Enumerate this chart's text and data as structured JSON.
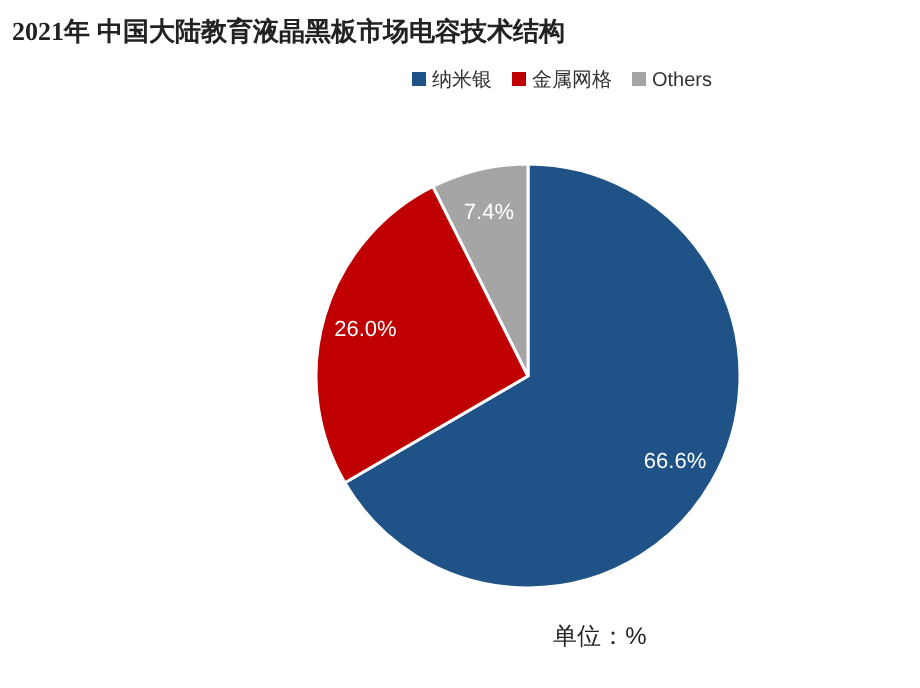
{
  "chart_data": {
    "type": "pie",
    "title": "2021年  中国大陆教育液晶黑板市场电容技术结构",
    "categories": [
      "纳米银",
      "金属网格",
      "Others"
    ],
    "values": [
      66.6,
      26.0,
      7.4
    ],
    "colors": [
      "#1f5286",
      "#c00000",
      "#a5a5a5"
    ],
    "value_labels": [
      "66.6%",
      "26.0%",
      "7.4%"
    ],
    "legend": "top right",
    "annotations": [
      "单位：%"
    ]
  }
}
